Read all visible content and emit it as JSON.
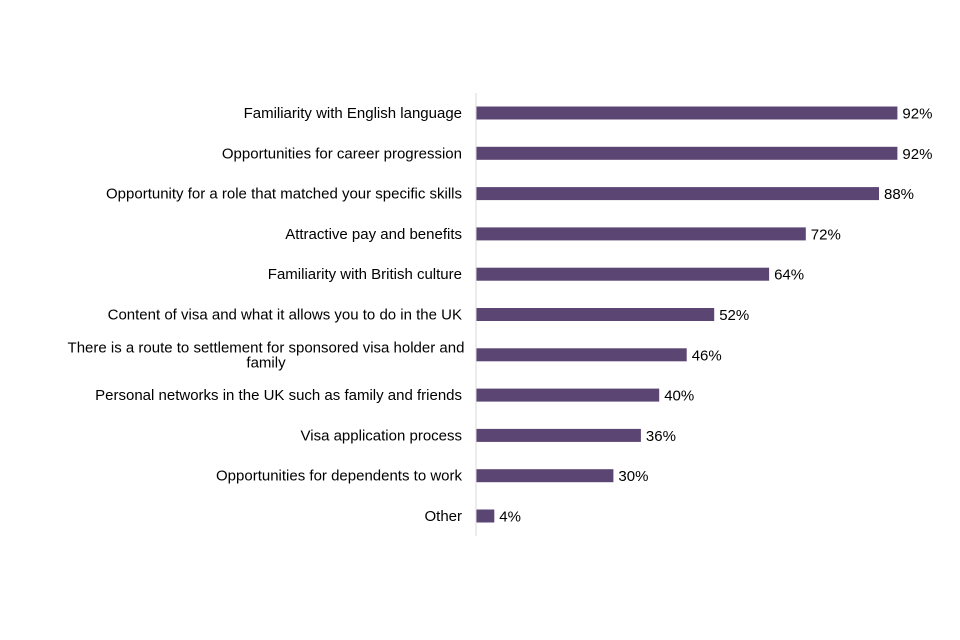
{
  "chart_data": {
    "type": "bar",
    "orientation": "horizontal",
    "categories": [
      "Familiarity with English language",
      "Opportunities for career progression",
      "Opportunity for a role that matched your specific skills",
      "Attractive pay and benefits",
      "Familiarity with British culture",
      "Content of visa and what it allows you to do in the UK",
      "There is a route to settlement for sponsored visa holder and family",
      "Personal networks in the UK such as family and friends",
      "Visa application process",
      "Opportunities for dependents to work",
      "Other"
    ],
    "category_lines": [
      [
        "Familiarity with English language"
      ],
      [
        "Opportunities for career progression"
      ],
      [
        "Opportunity for a role that matched your specific skills"
      ],
      [
        "Attractive pay and benefits"
      ],
      [
        "Familiarity with British culture"
      ],
      [
        "Content of visa and what it allows you to do in the UK"
      ],
      [
        "There is a route to settlement for sponsored visa holder and",
        "family"
      ],
      [
        "Personal networks in the UK such as family and friends"
      ],
      [
        "Visa application process"
      ],
      [
        "Opportunities for dependents to work"
      ],
      [
        "Other"
      ]
    ],
    "values": [
      92,
      92,
      88,
      72,
      64,
      52,
      46,
      40,
      36,
      30,
      4
    ],
    "value_labels": [
      "92%",
      "92%",
      "88%",
      "72%",
      "64%",
      "52%",
      "46%",
      "40%",
      "36%",
      "30%",
      "4%"
    ],
    "xlim": [
      0,
      100
    ],
    "grid": false,
    "bar_color": "#5b4572",
    "axis_color": "#d9d9d9"
  }
}
